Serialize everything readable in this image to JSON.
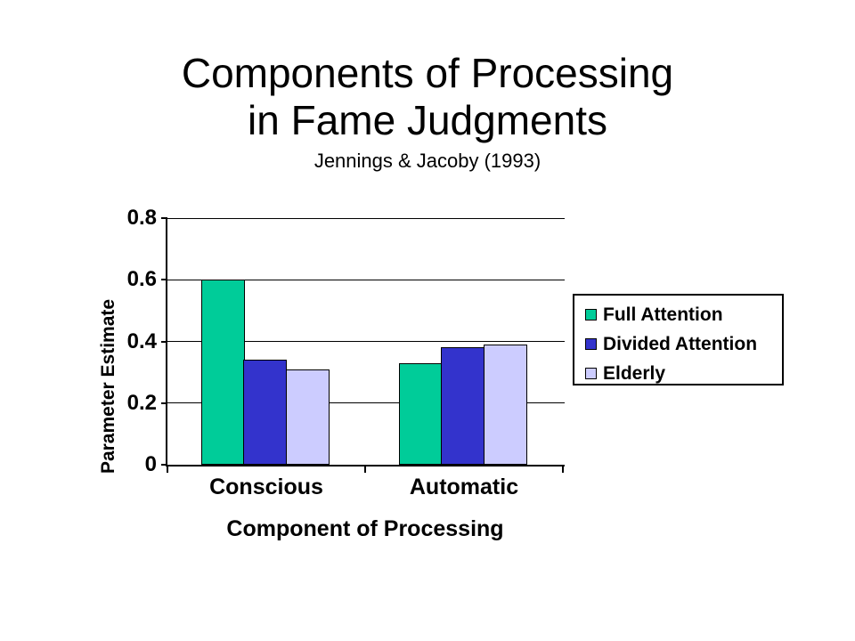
{
  "slide": {
    "title_line1": "Components of Processing",
    "title_line2": "in Fame Judgments",
    "subtitle": "Jennings & Jacoby (1993)"
  },
  "chart_data": {
    "type": "bar",
    "title": "Components of Processing in Fame Judgments",
    "subtitle": "Jennings & Jacoby (1993)",
    "xlabel": "Component of Processing",
    "ylabel": "Parameter Estimate",
    "categories": [
      "Conscious",
      "Automatic"
    ],
    "series": [
      {
        "name": "Full Attention",
        "color": "#00CC99",
        "values": [
          0.6,
          0.33
        ]
      },
      {
        "name": "Divided Attention",
        "color": "#3333CC",
        "values": [
          0.34,
          0.38
        ]
      },
      {
        "name": "Elderly",
        "color": "#CCCCFF",
        "values": [
          0.31,
          0.39
        ]
      }
    ],
    "ylim": [
      0,
      0.8
    ],
    "yticks": [
      {
        "value": 0.8,
        "label": "0.8"
      },
      {
        "value": 0.6,
        "label": "0.6"
      },
      {
        "value": 0.4,
        "label": "0.4"
      },
      {
        "value": 0.2,
        "label": "0.2"
      },
      {
        "value": 0,
        "label": "0"
      }
    ],
    "grid": true,
    "legend_position": "right",
    "bar_border_color": "#000000",
    "axis_color": "#000000",
    "background_color": "#FFFFFF"
  }
}
